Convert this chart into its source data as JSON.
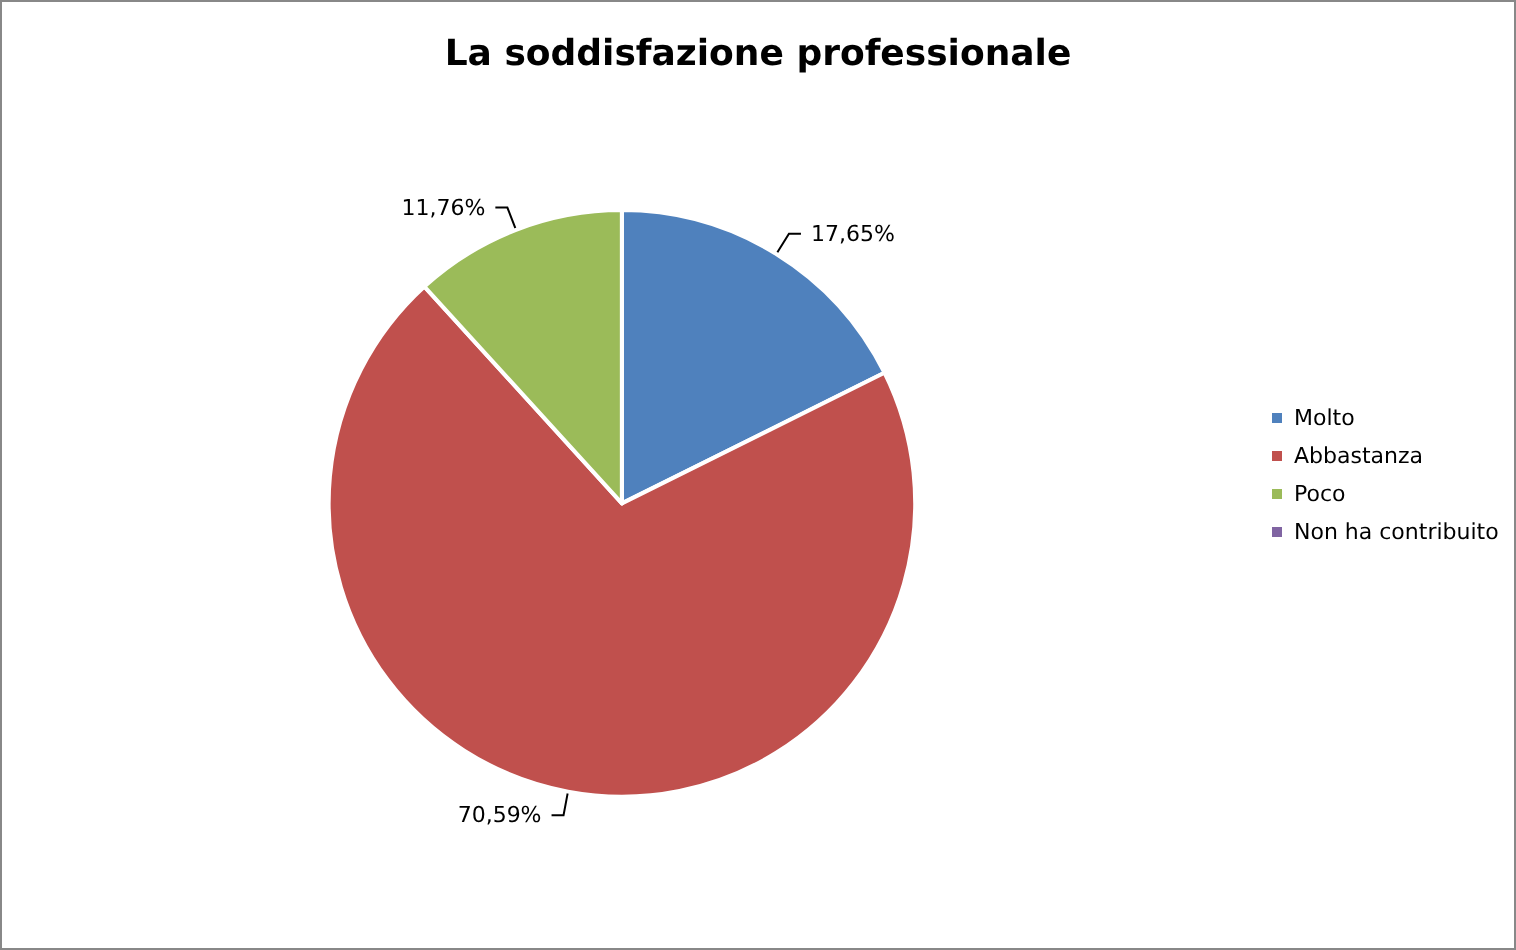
{
  "chart_data": {
    "type": "pie",
    "title": "La soddisfazione professionale",
    "categories": [
      "Molto",
      "Abbastanza",
      "Poco",
      "Non ha contribuito"
    ],
    "values": [
      17.65,
      70.59,
      11.76,
      0
    ],
    "colors": [
      "#4f81bd",
      "#c0504d",
      "#9bbb59",
      "#8064a2"
    ],
    "value_labels": [
      "17,65%",
      "70,59%",
      "11,76%",
      null
    ],
    "legend": "right"
  }
}
